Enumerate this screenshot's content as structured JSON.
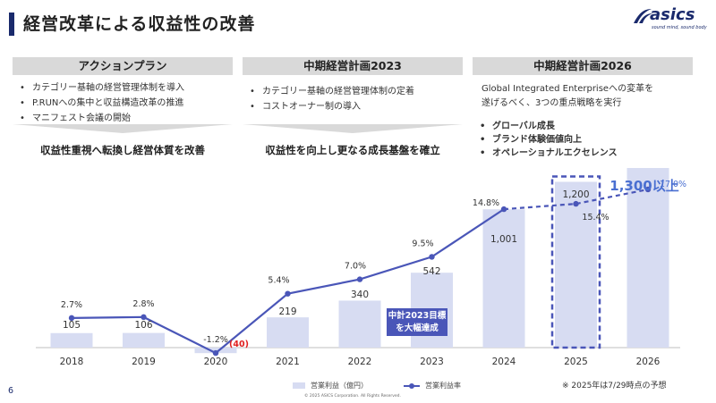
{
  "header": {
    "title": "経営改革による収益性の改善",
    "logo_text": "asics",
    "logo_tagline": "sound mind, sound body"
  },
  "columns": [
    {
      "heading": "アクションプラン",
      "bullets": [
        "カテゴリー基軸の経営管理体制を導入",
        "P.RUNへの集中と収益構造改革の推進",
        "マニフェスト会議の開始"
      ],
      "summary": "収益性重視へ転換し経営体質を改善"
    },
    {
      "heading": "中期経営計画2023",
      "bullets": [
        "カテゴリー基軸の経営管理体制の定着",
        "コストオーナー制の導入"
      ],
      "summary": "収益性を向上し更なる成長基盤を確立"
    },
    {
      "heading": "中期経営計画2026",
      "body_line1": "Global Integrated Enterpriseへの変革を",
      "body_line2": "遂げるべく、3つの重点戦略を実行",
      "bullets": [
        "グローバル成長",
        "ブランド体験価値向上",
        "オペレーショナルエクセレンス"
      ]
    }
  ],
  "chart_data": {
    "type": "bar",
    "categories": [
      "2018",
      "2019",
      "2020",
      "2021",
      "2022",
      "2023",
      "2024",
      "2025",
      "2026"
    ],
    "series": [
      {
        "name": "営業利益（億円）",
        "type": "bar",
        "values": [
          105,
          106,
          -40,
          219,
          340,
          542,
          1001,
          1200,
          1300
        ]
      },
      {
        "name": "営業利益率",
        "type": "line",
        "values": [
          2.7,
          2.8,
          -1.2,
          5.4,
          7.0,
          9.5,
          14.8,
          15.4,
          17.0
        ]
      }
    ],
    "bar_labels": [
      "105",
      "106",
      "(40)",
      "219",
      "340",
      "542",
      "1,001",
      "1,200",
      "1,300以上"
    ],
    "line_labels": [
      "2.7%",
      "2.8%",
      "-1.2%",
      "5.4%",
      "7.0%",
      "9.5%",
      "14.8%",
      "15.4%",
      "17.0%"
    ],
    "projected_from_index": 6,
    "highlight_index": 7,
    "colors": {
      "bar": "#d7dcf2",
      "line": "#4a56b8",
      "negative": "#e02020",
      "target": "#4a6fd1"
    }
  },
  "callout": {
    "line1": "中計2023目標",
    "line2": "を大幅達成"
  },
  "legend": {
    "bar_label": "営業利益（億円）",
    "line_label": "営業利益率"
  },
  "footnote": "※ 2025年は7/29時点の予想",
  "copyright": "© 2025 ASICS Corporation. All Rights Reserved.",
  "page_number": "6"
}
